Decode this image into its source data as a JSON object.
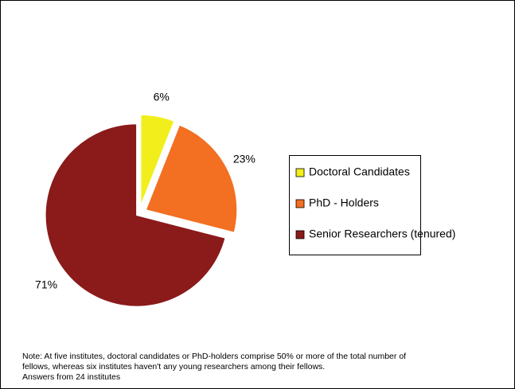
{
  "chart_data": {
    "type": "pie",
    "categories": [
      "Doctoral Candidates",
      "PhD - Holders",
      "Senior Researchers (tenured)"
    ],
    "values": [
      6,
      23,
      71
    ],
    "value_labels": [
      "6%",
      "23%",
      "71%"
    ],
    "colors": [
      "#f2ee1c",
      "#f36f21",
      "#8b1a1a"
    ],
    "legend": "right",
    "notes": [
      "Note: At five institutes, doctoral candidates or PhD-holders comprise 50% or more of the total number of",
      "fellows, whereas six institutes haven't any young researchers among their fellows.",
      "Answers from 24 institutes"
    ]
  }
}
